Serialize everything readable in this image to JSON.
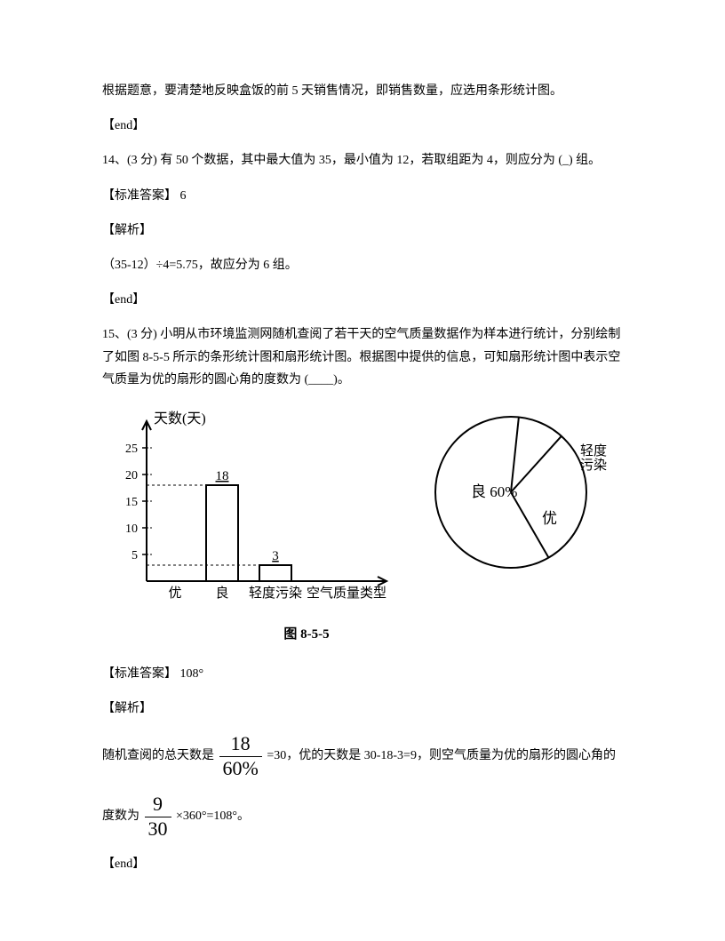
{
  "line1": "根据题意，要清楚地反映盒饭的前 5 天销售情况，即销售数量，应选用条形统计图。",
  "end1": "【end】",
  "q14": "14、(3 分) 有 50 个数据，其中最大值为 35，最小值为 12，若取组距为 4，则应分为 (_) 组。",
  "ans14_label": "【标准答案】 6",
  "exp_label1": "【解析】",
  "exp14": "（35-12）÷4=5.75，故应分为 6 组。",
  "end2": "【end】",
  "q15": "15、(3 分) 小明从市环境监测网随机查阅了若干天的空气质量数据作为样本进行统计，分别绘制了如图 8-5-5 所示的条形统计图和扇形统计图。根据图中提供的信息，可知扇形统计图中表示空气质量为优的扇形的圆心角的度数为 (____)。",
  "bar_chart": {
    "y_label": "天数(天)",
    "y_ticks": [
      "5",
      "10",
      "15",
      "20",
      "25"
    ],
    "y_max": 30,
    "categories": [
      "优",
      "良",
      "轻度污染",
      "空气质量类型"
    ],
    "bars": [
      {
        "label": "良",
        "value": 18,
        "x": 1
      },
      {
        "label": "轻度污染",
        "value": 3,
        "x": 2
      }
    ],
    "stroke": "#000000",
    "bg": "#ffffff"
  },
  "pie_chart": {
    "slices": [
      {
        "label": "良 60%",
        "start": 150,
        "end": 366
      },
      {
        "label": "轻度污染",
        "start": 6,
        "end": 42
      },
      {
        "label": "优",
        "start": 42,
        "end": 150
      }
    ],
    "label_liang": "良 60%",
    "label_qingdu1": "轻度",
    "label_qingdu2": "污染",
    "label_you": "优",
    "stroke": "#000000"
  },
  "figure_caption": "图 8-5-5",
  "ans15_label": "【标准答案】 108°",
  "exp_label2": "【解析】",
  "exp15_pre": "随机查阅的总天数是",
  "exp15_frac1_num": "18",
  "exp15_frac1_den": "60%",
  "exp15_mid": "=30，优的天数是 30-18-3=9，则空气质量为优的扇形的圆心角的",
  "exp15_line2_pre": "度数为",
  "exp15_frac2_num": "9",
  "exp15_frac2_den": "30",
  "exp15_line2_post": "×360°=108°。",
  "end3": "【end】"
}
